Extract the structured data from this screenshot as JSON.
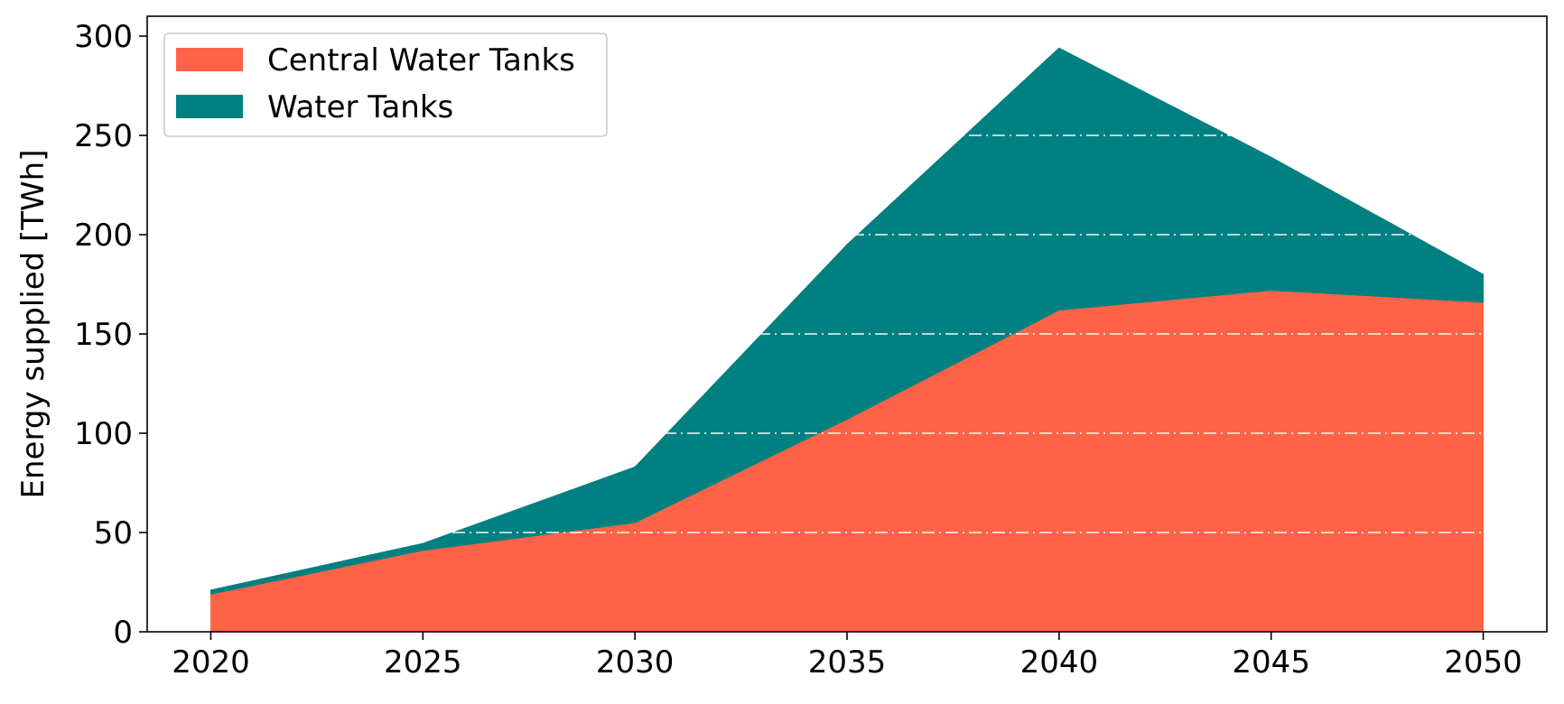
{
  "chart_data": {
    "type": "area",
    "stacked": true,
    "title": "",
    "xlabel": "",
    "ylabel": "Energy supplied [TWh]",
    "x": [
      2020,
      2025,
      2030,
      2035,
      2040,
      2045,
      2050
    ],
    "x_ticks": [
      "2020",
      "2025",
      "2030",
      "2035",
      "2040",
      "2045",
      "2050"
    ],
    "y_ticks": [
      "0",
      "50",
      "100",
      "150",
      "200",
      "250",
      "300"
    ],
    "xlim": [
      2018.5,
      2051.5
    ],
    "ylim": [
      0,
      310
    ],
    "grid": "horizontal dash-dot white lines drawn over the areas",
    "legend_position": "upper-left",
    "series": [
      {
        "name": "Central Water Tanks",
        "color": "#ff6347",
        "values": [
          19,
          41,
          55,
          107,
          162,
          172,
          166
        ]
      },
      {
        "name": "Water Tanks",
        "color": "#008080",
        "values": [
          2,
          3.5,
          28,
          88,
          132,
          67,
          14
        ]
      }
    ]
  }
}
